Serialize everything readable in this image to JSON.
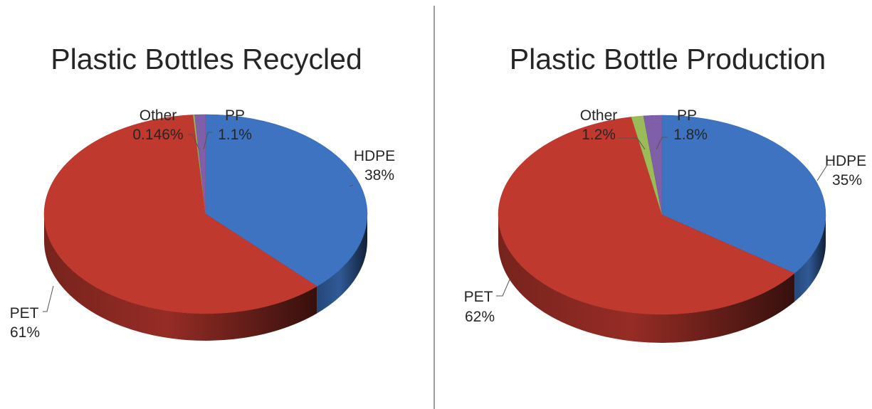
{
  "chart_data": [
    {
      "type": "pie",
      "title": "Plastic Bottles Recycled",
      "slices": [
        {
          "name": "HDPE",
          "value": 38,
          "value_label": "38%",
          "color": "#3E73C2"
        },
        {
          "name": "PET",
          "value": 61,
          "value_label": "61%",
          "color": "#C0392F"
        },
        {
          "name": "Other",
          "value": 0.146,
          "value_label": "0.146%",
          "color": "#9BBB59"
        },
        {
          "name": "PP",
          "value": 1.1,
          "value_label": "1.1%",
          "color": "#7F5FA8"
        }
      ]
    },
    {
      "type": "pie",
      "title": "Plastic Bottle Production",
      "slices": [
        {
          "name": "HDPE",
          "value": 35,
          "value_label": "35%",
          "color": "#3E73C2"
        },
        {
          "name": "PET",
          "value": 62,
          "value_label": "62%",
          "color": "#C0392F"
        },
        {
          "name": "Other",
          "value": 1.2,
          "value_label": "1.2%",
          "color": "#9BBB59"
        },
        {
          "name": "PP",
          "value": 1.8,
          "value_label": "1.8%",
          "color": "#7F5FA8"
        }
      ]
    }
  ]
}
